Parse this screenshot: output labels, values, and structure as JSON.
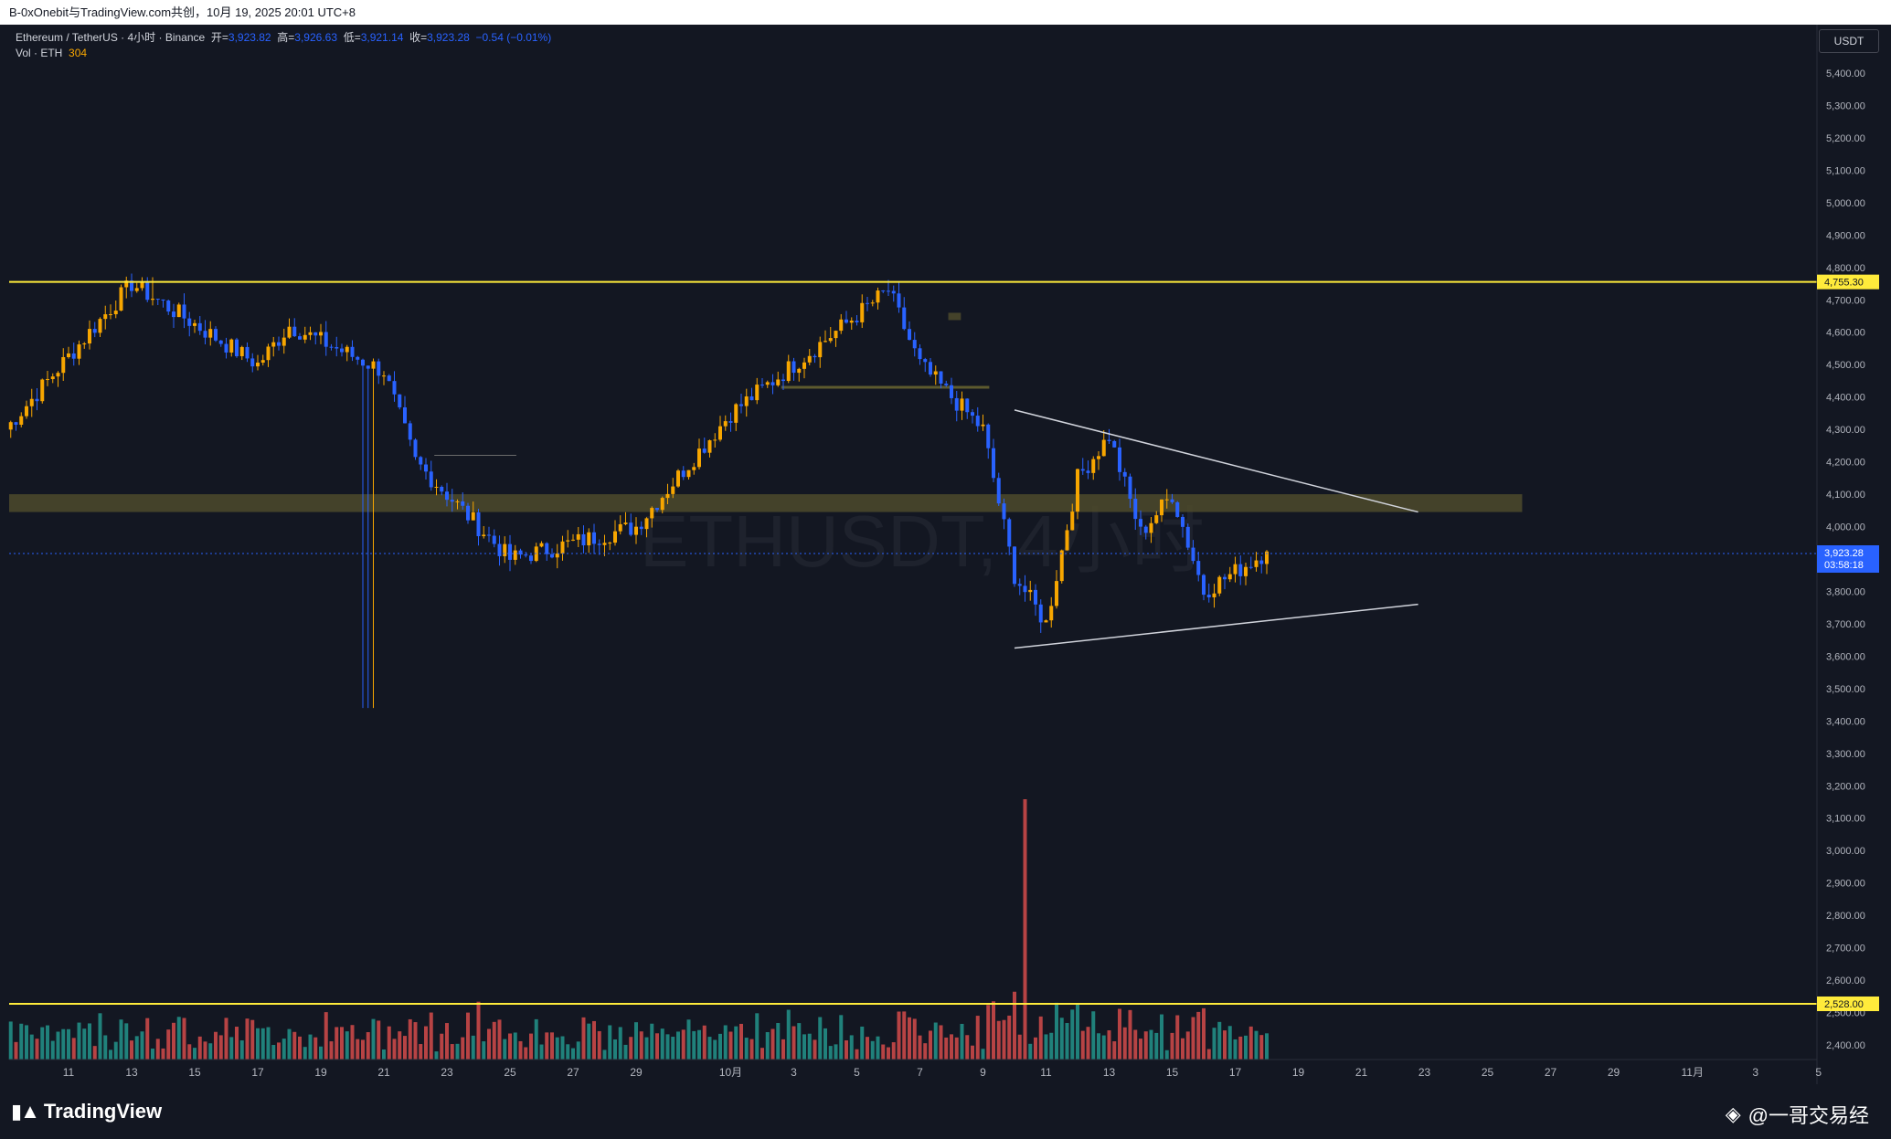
{
  "header": {
    "text": "B-0xOnebit与TradingView.com共创，10月 19, 2025 20:01 UTC+8"
  },
  "legend": {
    "symbol": "Ethereum / TetherUS · 4小时 · Binance",
    "open_label": "开=",
    "open": "3,923.82",
    "high_label": "高=",
    "high": "3,926.63",
    "low_label": "低=",
    "low": "3,921.14",
    "close_label": "收=",
    "close": "3,923.28",
    "change": "−0.54 (−0.01%)",
    "vol_label": "Vol · ETH",
    "vol_value": "304"
  },
  "axis": {
    "currency": "USDT"
  },
  "price_tag": {
    "price": "3,923.28",
    "countdown": "03:58:18"
  },
  "watermark": "ETHUSDT, 4小时",
  "footer": {
    "logo_text": "TradingView",
    "user": "@一哥交易经"
  },
  "colors": {
    "background": "#131722",
    "bull": "#f7a600",
    "bear": "#2962ff",
    "vol_bull": "#26a69a",
    "vol_bear": "#ef5350",
    "hline": "#ffeb3b",
    "zone": "#4d4a2b",
    "trendline": "#d1d4dc"
  },
  "chart_data": {
    "type": "candlestick",
    "timeframe": "4小时",
    "exchange": "Binance",
    "y_ticks": [
      "5,400.00",
      "5,300.00",
      "5,200.00",
      "5,100.00",
      "5,000.00",
      "4,900.00",
      "4,800.00",
      "4,700.00",
      "4,600.00",
      "4,500.00",
      "4,400.00",
      "4,300.00",
      "4,200.00",
      "4,100.00",
      "4,000.00",
      "3,900.00",
      "3,800.00",
      "3,700.00",
      "3,600.00",
      "3,500.00",
      "3,400.00",
      "3,300.00",
      "3,200.00",
      "3,100.00",
      "3,000.00",
      "2,900.00",
      "2,800.00",
      "2,700.00",
      "2,600.00",
      "2,500.00",
      "2,400.00"
    ],
    "y_range": [
      2360,
      5460
    ],
    "x_ticks": [
      "11",
      "13",
      "15",
      "17",
      "19",
      "21",
      "23",
      "25",
      "27",
      "29",
      "10月",
      "3",
      "5",
      "7",
      "9",
      "11",
      "13",
      "15",
      "17",
      "19",
      "21",
      "23",
      "25",
      "27",
      "29",
      "11月",
      "3",
      "5"
    ],
    "x_range_days": [
      "2025-09-09",
      "2025-11-06"
    ],
    "horizontal_lines": [
      {
        "price": 4755.3,
        "label": "4,755.30"
      },
      {
        "price": 2528.0,
        "label": "2,528.00"
      }
    ],
    "zones": [
      {
        "from": "2025-09-09",
        "to": "2025-10-27",
        "low": 4045,
        "high": 4100
      },
      {
        "from": "2025-10-08",
        "to": "2025-10-09",
        "low": 4640,
        "high": 4660
      }
    ],
    "support_lines": [
      {
        "from": "2025-10-03",
        "to": "2025-10-10",
        "price": 4430
      },
      {
        "from": "2025-09-22",
        "to": "2025-09-25",
        "price": 4220
      }
    ],
    "trendlines": [
      {
        "from": [
          "2025-10-11",
          4360
        ],
        "to": [
          "2025-10-23",
          4045
        ]
      },
      {
        "from": [
          "2025-10-11",
          3625
        ],
        "to": [
          "2025-10-23",
          3760
        ]
      }
    ],
    "key_points": [
      {
        "date": "2025-09-09",
        "close": 4300
      },
      {
        "date": "2025-09-13",
        "close": 4750
      },
      {
        "date": "2025-09-17",
        "close": 4500
      },
      {
        "date": "2025-09-18",
        "close": 4620
      },
      {
        "date": "2025-09-21",
        "close": 4480
      },
      {
        "date": "2025-09-22",
        "close": 4200
      },
      {
        "date": "2025-09-25",
        "close": 3900
      },
      {
        "date": "2025-09-29",
        "close": 4000
      },
      {
        "date": "2025-10-02",
        "close": 4350
      },
      {
        "date": "2025-10-04",
        "close": 4500
      },
      {
        "date": "2025-10-07",
        "close": 4730
      },
      {
        "date": "2025-10-08",
        "close": 4500
      },
      {
        "date": "2025-10-10",
        "close": 4300
      },
      {
        "date": "2025-10-11",
        "close": 3850
      },
      {
        "date": "2025-10-12",
        "close": 3700
      },
      {
        "date": "2025-10-13",
        "close": 4150
      },
      {
        "date": "2025-10-14",
        "close": 4280
      },
      {
        "date": "2025-10-15",
        "close": 3980
      },
      {
        "date": "2025-10-16",
        "close": 4100
      },
      {
        "date": "2025-10-17",
        "close": 3800
      },
      {
        "date": "2025-10-18",
        "close": 3860
      },
      {
        "date": "2025-10-19",
        "close": 3923.28
      }
    ],
    "volume_spike": {
      "date": "2025-10-11",
      "volume": "max"
    },
    "last_volume": 304
  }
}
